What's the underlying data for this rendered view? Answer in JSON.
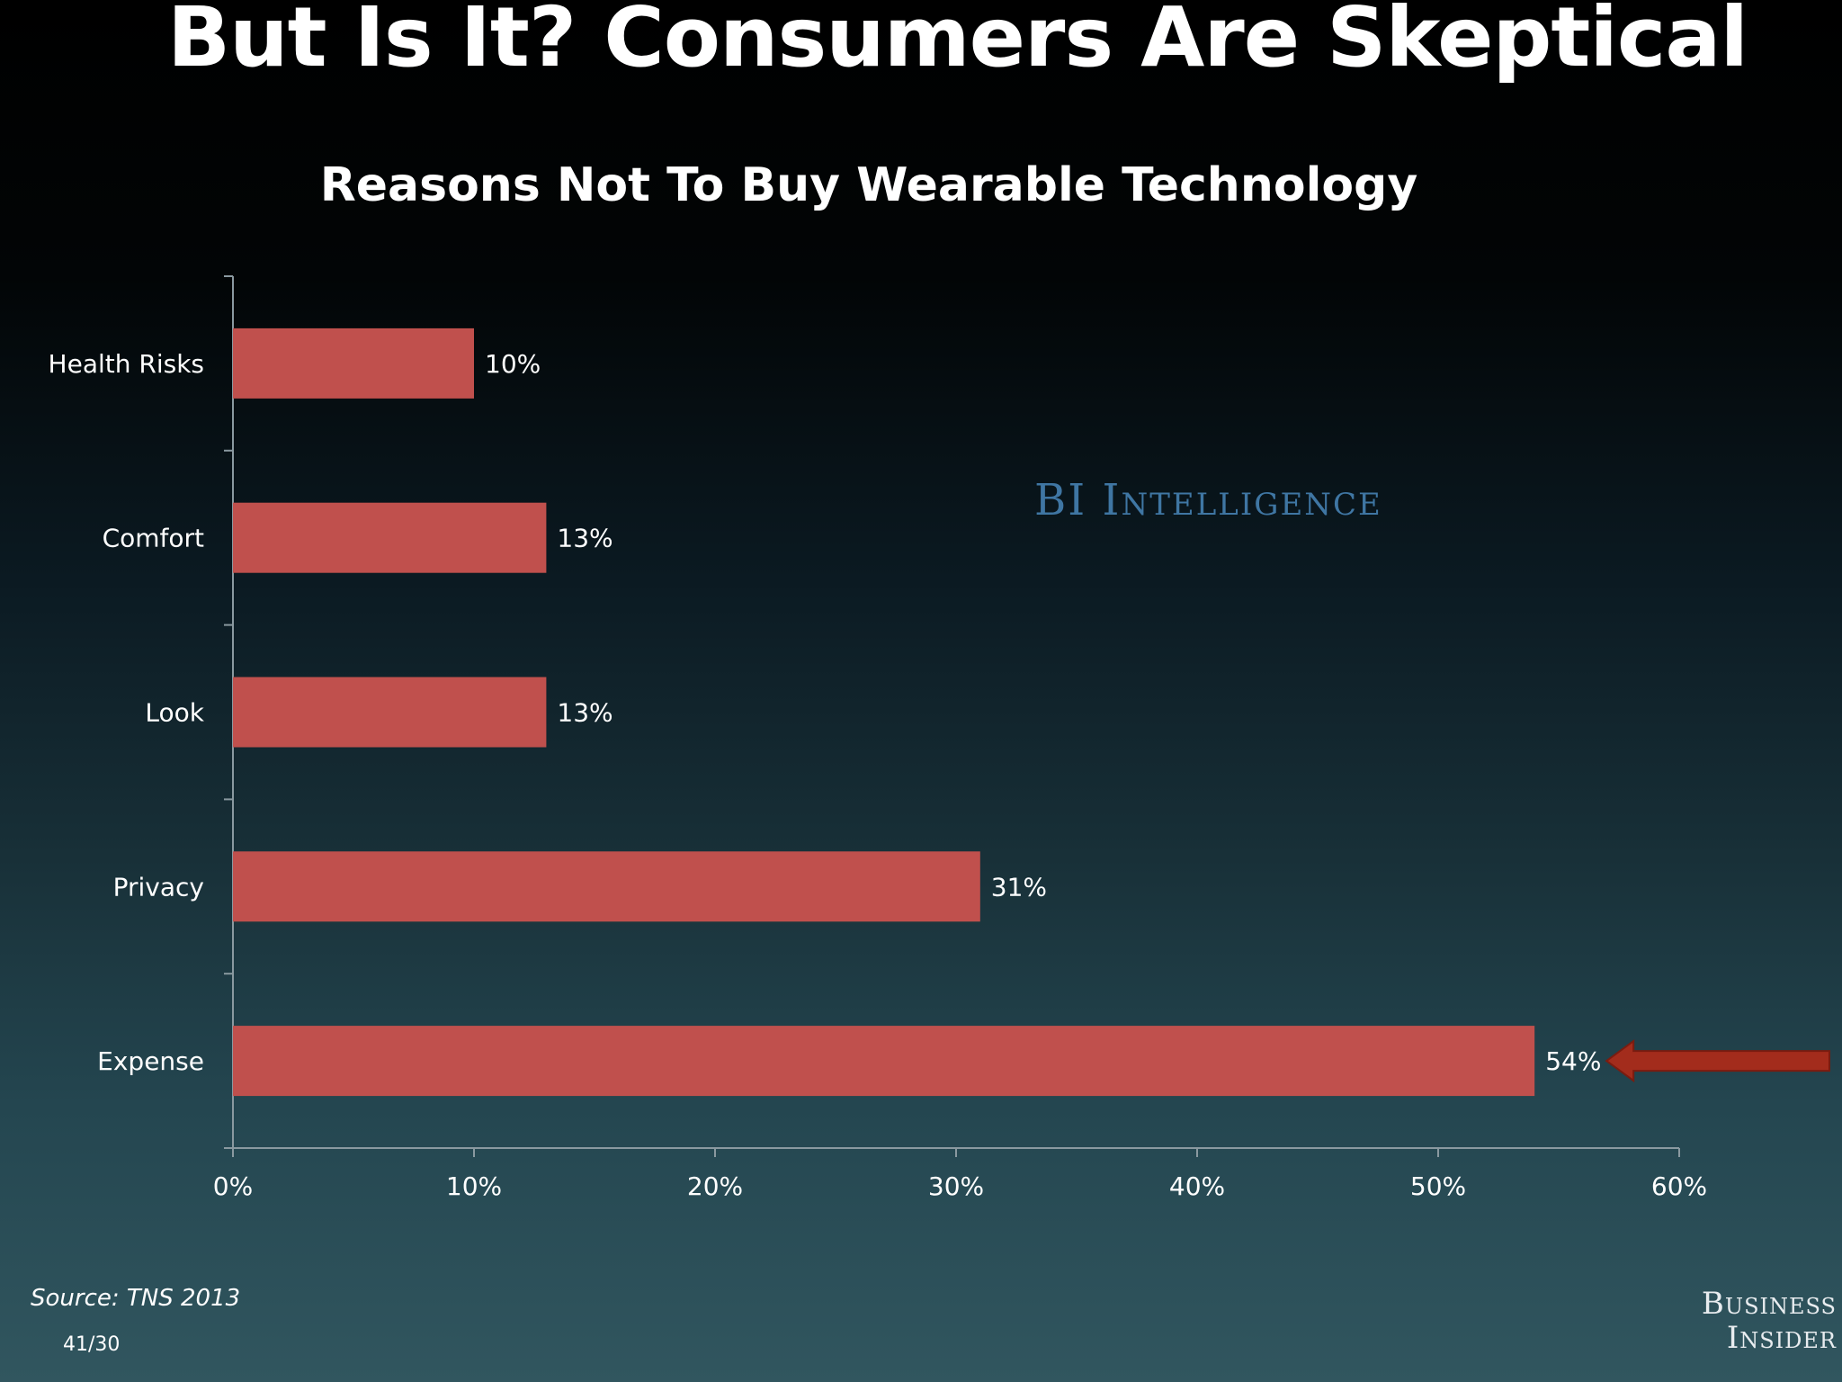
{
  "slide": {
    "title": "But Is It? Consumers Are Skeptical",
    "watermark": "BI Intelligence",
    "source": "Source: TNS 2013",
    "page_number": "41/30",
    "brand_line1": "Business",
    "brand_line2": "Insider"
  },
  "colors": {
    "bar": "#c0504d",
    "arrow": "#a32c1c",
    "axis": "#8a99a0",
    "text": "#ffffff"
  },
  "chart_data": {
    "type": "bar",
    "orientation": "horizontal",
    "title": "Reasons Not To Buy Wearable Technology",
    "categories": [
      "Health Risks",
      "Comfort",
      "Look",
      "Privacy",
      "Expense"
    ],
    "values": [
      10,
      13,
      13,
      31,
      54
    ],
    "data_labels": [
      "10%",
      "13%",
      "13%",
      "31%",
      "54%"
    ],
    "xlim": [
      0,
      60
    ],
    "xticks": [
      0,
      10,
      20,
      30,
      40,
      50,
      60
    ],
    "xtick_labels": [
      "0%",
      "10%",
      "20%",
      "30%",
      "40%",
      "50%",
      "60%"
    ],
    "xlabel": "",
    "ylabel": "",
    "grid": false,
    "legend": "none",
    "highlight": {
      "category": "Expense",
      "marker": "arrow"
    }
  }
}
